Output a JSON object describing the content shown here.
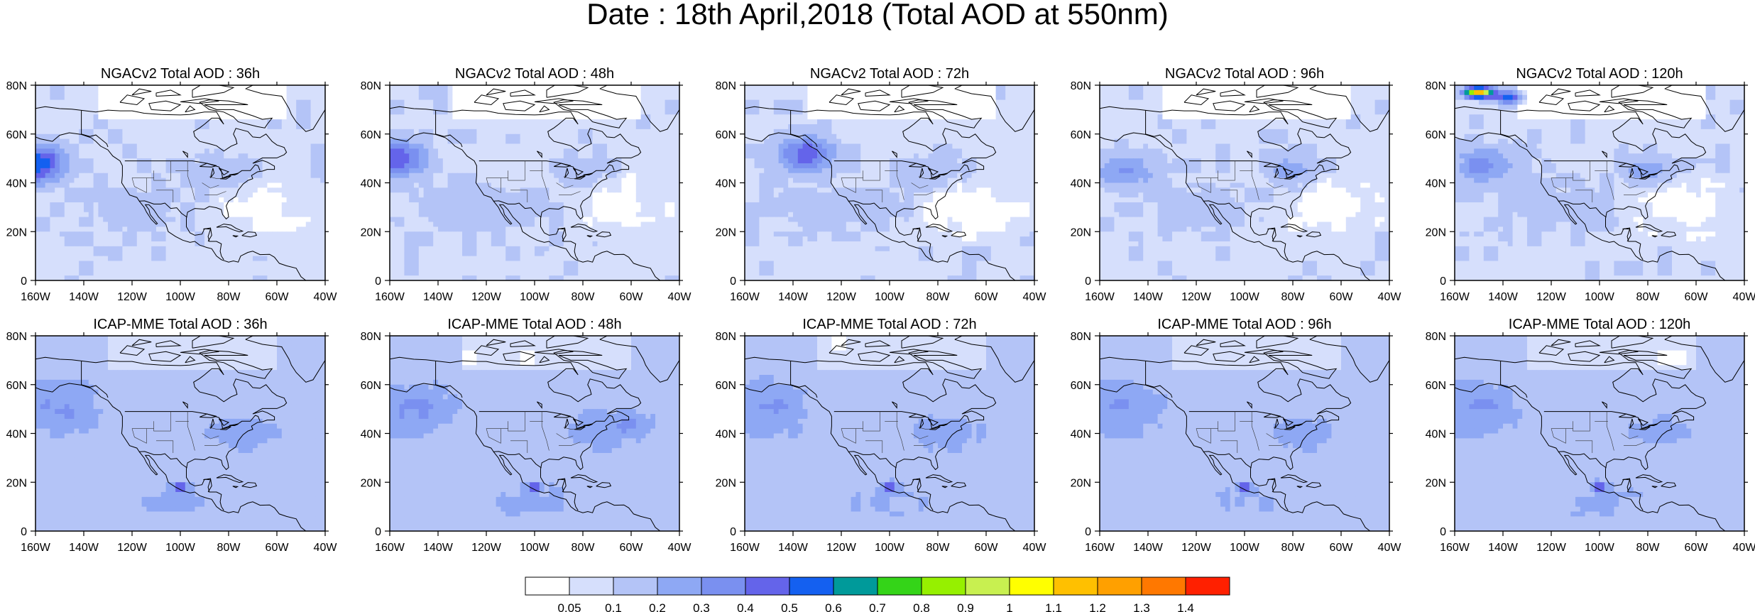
{
  "title": "Date : 18th April,2018 (Total AOD at 550nm)",
  "panels": [
    {
      "title": "NGACv2 Total AOD : 36h",
      "model": "NGACv2",
      "lead": "36h"
    },
    {
      "title": "NGACv2 Total AOD : 48h",
      "model": "NGACv2",
      "lead": "48h"
    },
    {
      "title": "NGACv2 Total AOD : 72h",
      "model": "NGACv2",
      "lead": "72h"
    },
    {
      "title": "NGACv2 Total AOD : 96h",
      "model": "NGACv2",
      "lead": "96h"
    },
    {
      "title": "NGACv2 Total AOD : 120h",
      "model": "NGACv2",
      "lead": "120h"
    },
    {
      "title": "ICAP-MME Total AOD : 36h",
      "model": "ICAP-MME",
      "lead": "36h"
    },
    {
      "title": "ICAP-MME Total AOD : 48h",
      "model": "ICAP-MME",
      "lead": "48h"
    },
    {
      "title": "ICAP-MME Total AOD : 72h",
      "model": "ICAP-MME",
      "lead": "72h"
    },
    {
      "title": "ICAP-MME Total AOD : 96h",
      "model": "ICAP-MME",
      "lead": "96h"
    },
    {
      "title": "ICAP-MME Total AOD : 120h",
      "model": "ICAP-MME",
      "lead": "120h"
    }
  ],
  "lon_ticks": [
    "160W",
    "140W",
    "120W",
    "100W",
    "80W",
    "60W",
    "40W"
  ],
  "lat_ticks": [
    "0",
    "20N",
    "40N",
    "60N",
    "80N"
  ],
  "extent": {
    "lon": [
      -160,
      -40
    ],
    "lat": [
      0,
      80
    ]
  },
  "colorbar": {
    "labels": [
      "0.05",
      "0.1",
      "0.2",
      "0.3",
      "0.4",
      "0.5",
      "0.6",
      "0.7",
      "0.8",
      "0.9",
      "1",
      "1.1",
      "1.2",
      "1.3",
      "1.4"
    ],
    "colors": [
      "#ffffff",
      "#d6dffc",
      "#b4c4f7",
      "#8ea8f4",
      "#7a90f0",
      "#6464ea",
      "#1460f0",
      "#009a9a",
      "#34d418",
      "#96f000",
      "#c8f050",
      "#ffff00",
      "#ffc000",
      "#ffa000",
      "#ff7800",
      "#ff2000"
    ]
  }
}
